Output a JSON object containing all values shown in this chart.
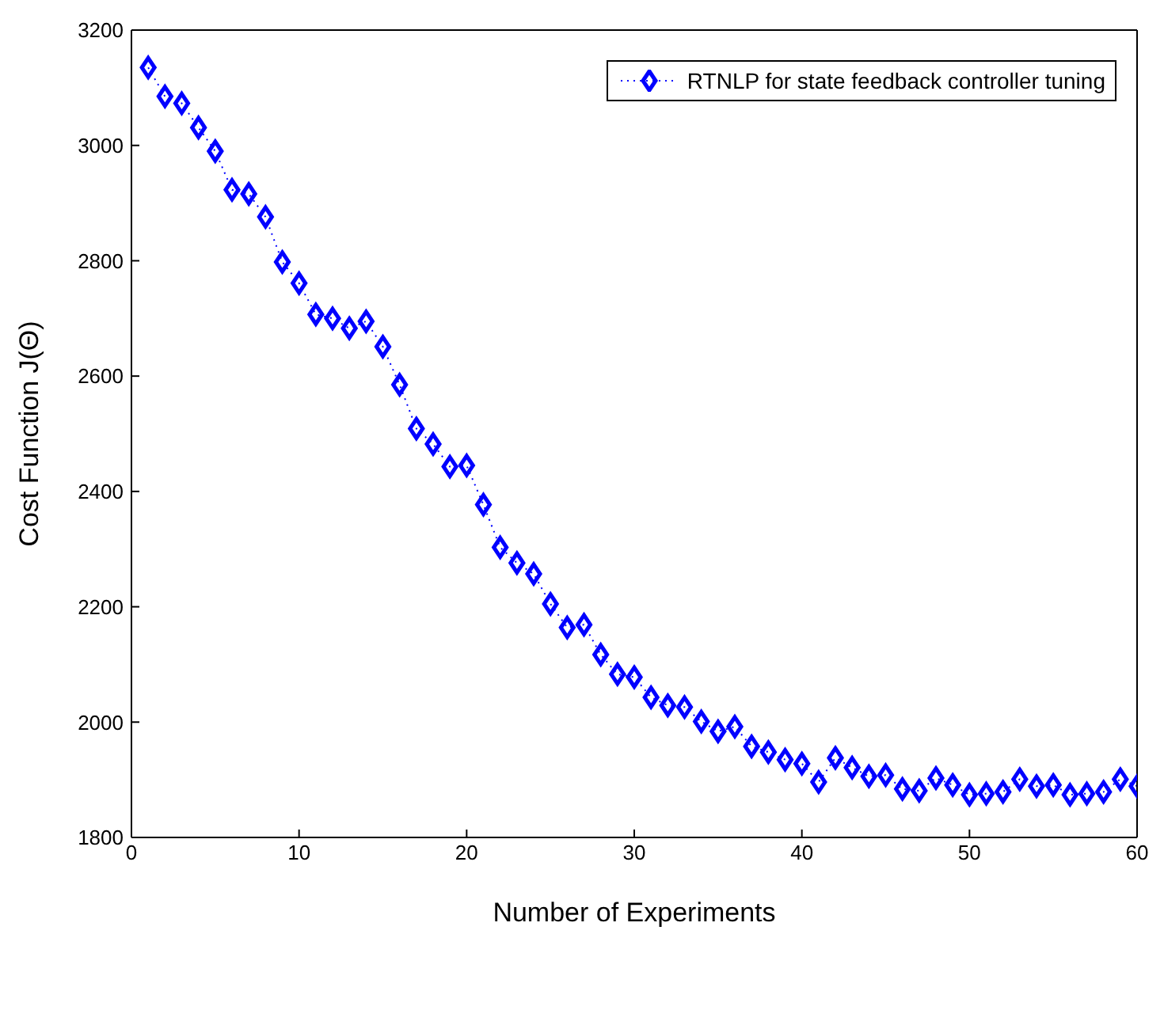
{
  "chart_data": {
    "type": "line",
    "xlabel": "Number of Experiments",
    "ylabel": "Cost Function J(Θ)",
    "x": [
      1,
      2,
      3,
      4,
      5,
      6,
      7,
      8,
      9,
      10,
      11,
      12,
      13,
      14,
      15,
      16,
      17,
      18,
      19,
      20,
      21,
      22,
      23,
      24,
      25,
      26,
      27,
      28,
      29,
      30,
      31,
      32,
      33,
      34,
      35,
      36,
      37,
      38,
      39,
      40,
      41,
      42,
      43,
      44,
      45,
      46,
      47,
      48,
      49,
      50,
      51,
      52,
      53,
      54,
      55,
      56,
      57,
      58,
      59,
      60
    ],
    "series": [
      {
        "name": "RTNLP for state feedback controller tuning",
        "color": "#0000ff",
        "values": [
          3135,
          3085,
          3073,
          3031,
          2990,
          2923,
          2916,
          2876,
          2798,
          2761,
          2707,
          2700,
          2683,
          2695,
          2651,
          2585,
          2509,
          2482,
          2443,
          2445,
          2377,
          2303,
          2276,
          2257,
          2205,
          2164,
          2169,
          2117,
          2083,
          2078,
          2043,
          2029,
          2026,
          2001,
          1984,
          1992,
          1958,
          1948,
          1935,
          1928,
          1896,
          1938,
          1921,
          1906,
          1908,
          1884,
          1881,
          1903,
          1891,
          1874,
          1876,
          1879,
          1901,
          1889,
          1891,
          1874,
          1876,
          1879,
          1901,
          1889
        ]
      }
    ],
    "xlim": [
      0,
      60
    ],
    "xticks": [
      0,
      10,
      20,
      30,
      40,
      50,
      60
    ],
    "ylim": [
      1800,
      3200
    ],
    "yticks": [
      1800,
      2000,
      2200,
      2400,
      2600,
      2800,
      3000,
      3200
    ],
    "grid": false,
    "legend": "top right",
    "marker": "diamond",
    "line_style": "dotted"
  }
}
